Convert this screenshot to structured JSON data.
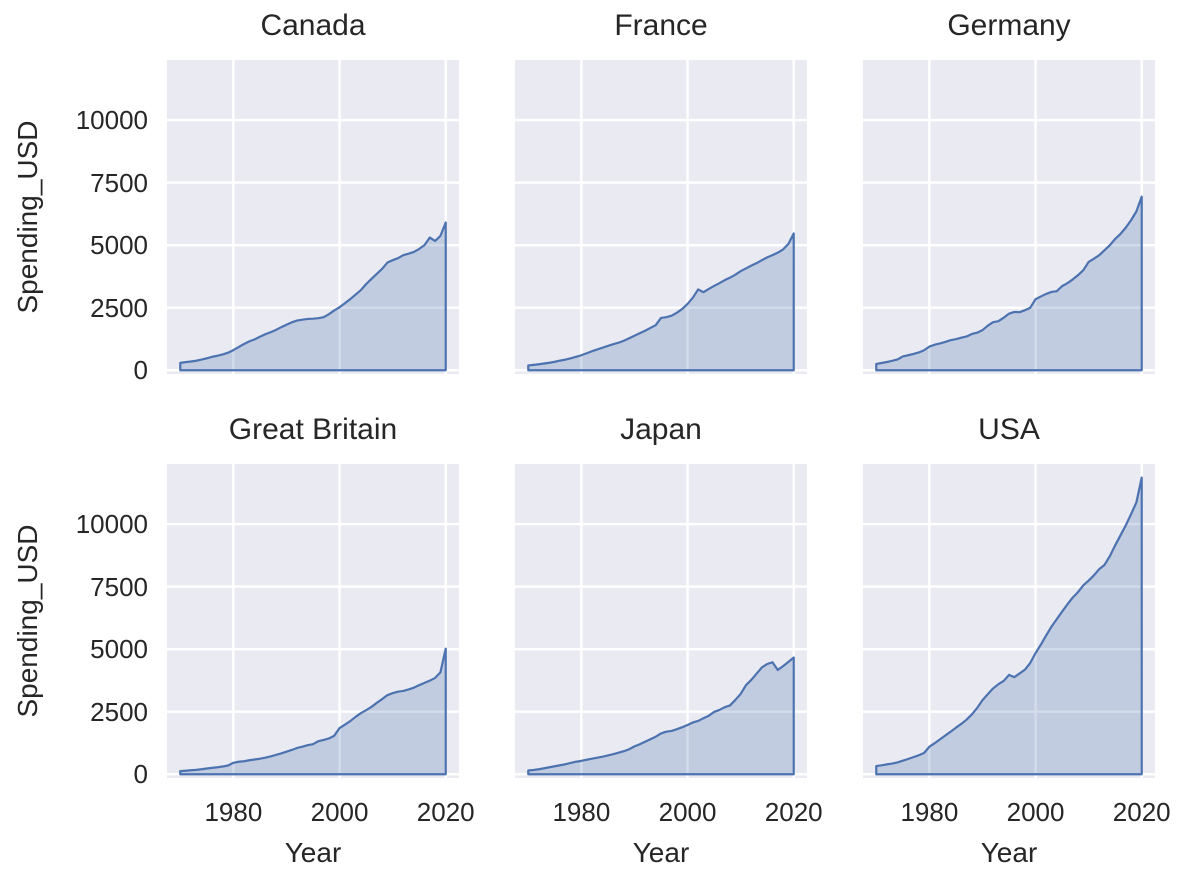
{
  "chart_data": {
    "type": "area",
    "layout": "facet-grid-2x3",
    "xlabel": "Year",
    "ylabel": "Spending_USD",
    "x_ticks": [
      1980,
      2000,
      2020
    ],
    "y_ticks": [
      0,
      2500,
      5000,
      7500,
      10000
    ],
    "x_tick_labels": [
      "1980",
      "2000",
      "2020"
    ],
    "y_tick_labels": [
      "0",
      "2500",
      "5000",
      "7500",
      "10000"
    ],
    "xlim": [
      1967.5,
      2022.5
    ],
    "ylim": [
      -150,
      12400
    ],
    "grid": true,
    "legend": false,
    "axes_bg": "#eaeaf2",
    "grid_color": "#ffffff",
    "line_color": "#4c72b0",
    "fill_color": "rgba(76,114,176,0.25)",
    "text_color": "#262626",
    "years": [
      1970,
      1971,
      1972,
      1973,
      1974,
      1975,
      1976,
      1977,
      1978,
      1979,
      1980,
      1981,
      1982,
      1983,
      1984,
      1985,
      1986,
      1987,
      1988,
      1989,
      1990,
      1991,
      1992,
      1993,
      1994,
      1995,
      1996,
      1997,
      1998,
      1999,
      2000,
      2001,
      2002,
      2003,
      2004,
      2005,
      2006,
      2007,
      2008,
      2009,
      2010,
      2011,
      2012,
      2013,
      2014,
      2015,
      2016,
      2017,
      2018,
      2019,
      2020
    ],
    "facets": [
      {
        "key": "canada",
        "title": "Canada",
        "values": [
          295,
          325,
          350,
          380,
          425,
          478,
          535,
          580,
          630,
          700,
          806,
          925,
          1050,
          1155,
          1235,
          1337,
          1440,
          1520,
          1610,
          1720,
          1819,
          1915,
          1985,
          2020,
          2050,
          2060,
          2080,
          2120,
          2240,
          2390,
          2518,
          2680,
          2840,
          3020,
          3200,
          3441,
          3650,
          3850,
          4050,
          4300,
          4399,
          4480,
          4600,
          4660,
          4730,
          4850,
          5000,
          5305,
          5170,
          5370,
          5905
        ]
      },
      {
        "key": "france",
        "title": "France",
        "values": [
          192,
          215,
          240,
          270,
          300,
          340,
          385,
          425,
          475,
          535,
          600,
          680,
          760,
          830,
          900,
          970,
          1040,
          1100,
          1180,
          1280,
          1380,
          1480,
          1580,
          1690,
          1800,
          2090,
          2120,
          2180,
          2300,
          2450,
          2650,
          2900,
          3230,
          3120,
          3250,
          3370,
          3480,
          3600,
          3700,
          3820,
          3960,
          4070,
          4180,
          4280,
          4400,
          4510,
          4600,
          4700,
          4830,
          5050,
          5468
        ]
      },
      {
        "key": "germany",
        "title": "Germany",
        "values": [
          252,
          290,
          330,
          375,
          430,
          553,
          600,
          650,
          710,
          800,
          945,
          1020,
          1070,
          1130,
          1200,
          1242,
          1300,
          1350,
          1450,
          1500,
          1602,
          1780,
          1920,
          1960,
          2100,
          2262,
          2330,
          2320,
          2400,
          2500,
          2838,
          2950,
          3050,
          3130,
          3160,
          3362,
          3480,
          3630,
          3800,
          4000,
          4330,
          4460,
          4600,
          4800,
          5000,
          5250,
          5450,
          5700,
          6000,
          6350,
          6939
        ]
      },
      {
        "key": "great-britain",
        "title": "Great Britain",
        "values": [
          124,
          140,
          160,
          175,
          200,
          230,
          255,
          280,
          310,
          350,
          458,
          500,
          520,
          560,
          590,
          620,
          660,
          710,
          770,
          830,
          900,
          970,
          1050,
          1100,
          1160,
          1200,
          1320,
          1370,
          1430,
          1540,
          1846,
          1980,
          2120,
          2290,
          2440,
          2560,
          2690,
          2850,
          3000,
          3160,
          3240,
          3300,
          3330,
          3390,
          3460,
          3560,
          3650,
          3740,
          3850,
          4070,
          5019
        ]
      },
      {
        "key": "japan",
        "title": "Japan",
        "values": [
          150,
          170,
          200,
          240,
          280,
          320,
          360,
          400,
          450,
          500,
          535,
          580,
          620,
          660,
          700,
          750,
          800,
          860,
          920,
          1000,
          1115,
          1200,
          1300,
          1400,
          1500,
          1630,
          1700,
          1730,
          1800,
          1880,
          1970,
          2070,
          2130,
          2240,
          2340,
          2490,
          2570,
          2680,
          2750,
          2970,
          3210,
          3560,
          3770,
          4020,
          4270,
          4406,
          4476,
          4169,
          4320,
          4490,
          4666
        ]
      },
      {
        "key": "usa",
        "title": "USA",
        "values": [
          327,
          357,
          394,
          428,
          474,
          541,
          609,
          684,
          758,
          849,
          1100,
          1240,
          1395,
          1550,
          1700,
          1860,
          2010,
          2180,
          2390,
          2650,
          2960,
          3200,
          3430,
          3600,
          3730,
          3970,
          3880,
          4030,
          4180,
          4450,
          4845,
          5180,
          5550,
          5900,
          6200,
          6500,
          6790,
          7060,
          7280,
          7550,
          7740,
          7950,
          8200,
          8370,
          8720,
          9150,
          9550,
          9950,
          10400,
          10870,
          11859
        ]
      }
    ]
  }
}
